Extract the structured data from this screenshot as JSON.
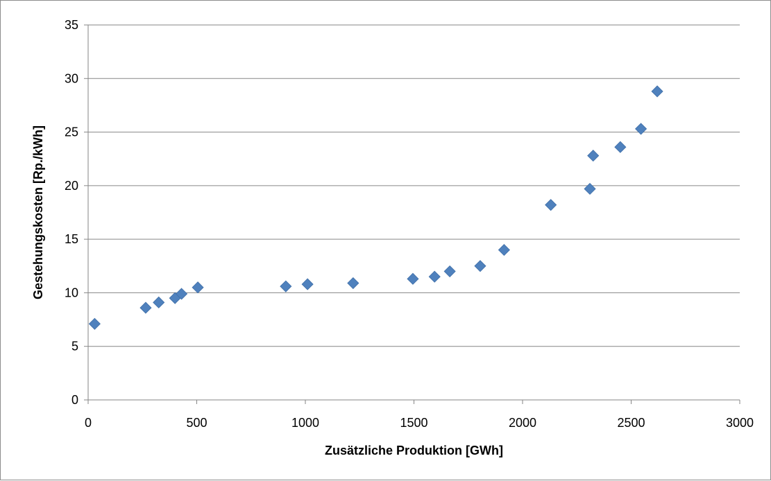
{
  "chart_data": {
    "type": "scatter",
    "title": "",
    "xlabel": "Zusätzliche Produktion [GWh]",
    "ylabel": "Gestehungskosten [Rp./kWh]",
    "xlim": [
      0,
      3000
    ],
    "ylim": [
      0,
      35
    ],
    "xticks": [
      0,
      500,
      1000,
      1500,
      2000,
      2500,
      3000
    ],
    "yticks": [
      0,
      5,
      10,
      15,
      20,
      25,
      30,
      35
    ],
    "grid": "horizontal",
    "legend": "none",
    "marker": "diamond",
    "color": "#4f81bd",
    "series": [
      {
        "x": [
          30,
          265,
          325,
          400,
          430,
          505,
          910,
          1010,
          1220,
          1495,
          1595,
          1665,
          1805,
          1915,
          2130,
          2310,
          2325,
          2450,
          2545,
          2620
        ],
        "y": [
          7.1,
          8.6,
          9.1,
          9.5,
          9.9,
          10.5,
          10.6,
          10.8,
          10.9,
          11.3,
          11.5,
          12.0,
          12.5,
          14.0,
          18.2,
          19.7,
          22.8,
          23.6,
          25.3,
          28.8
        ]
      }
    ]
  }
}
